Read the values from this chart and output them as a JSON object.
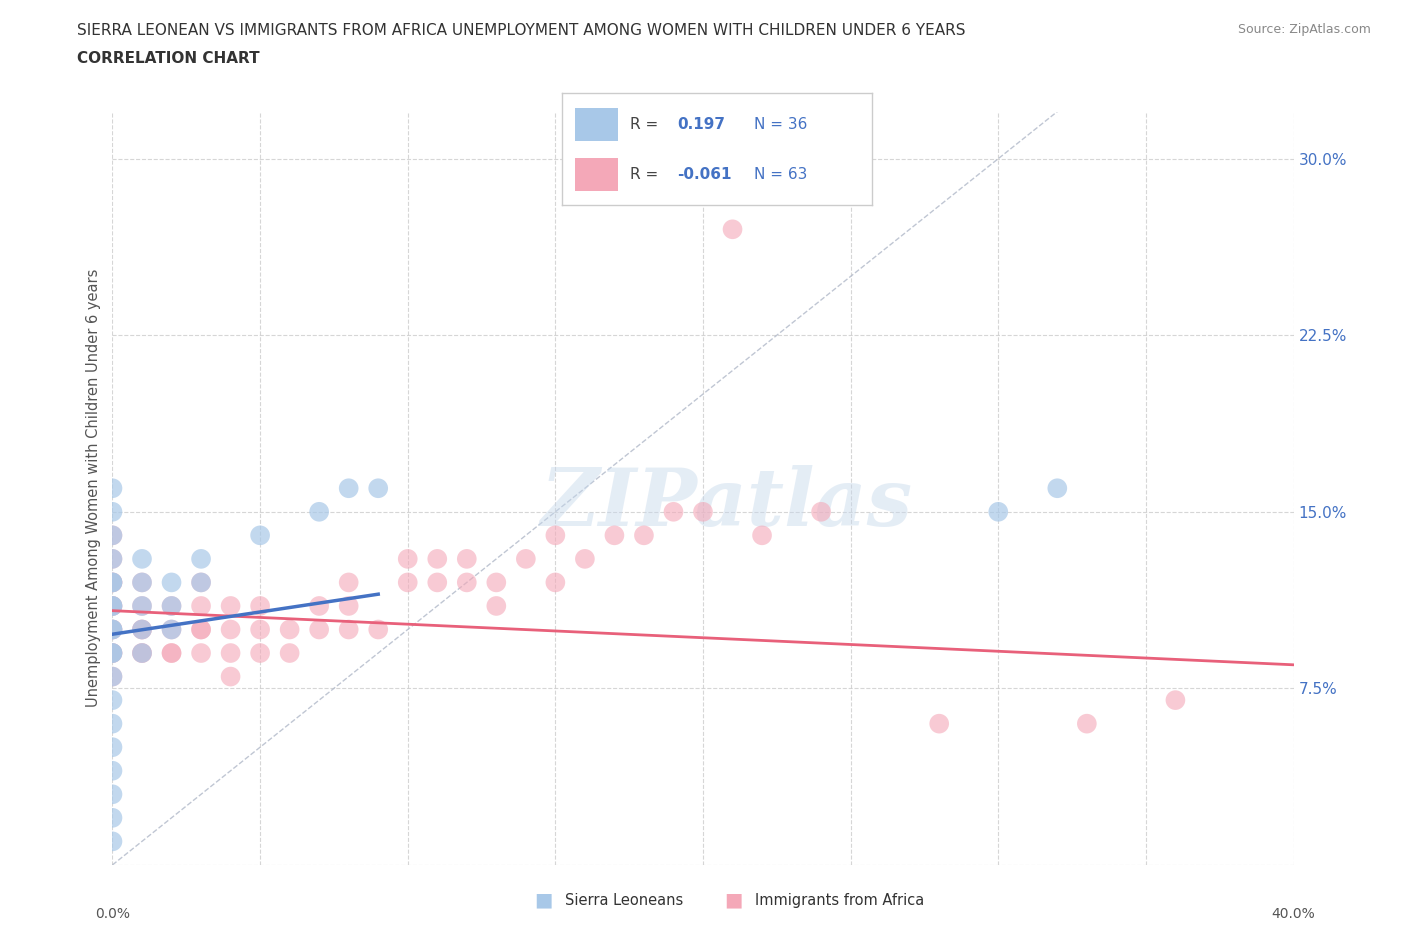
{
  "title_line1": "SIERRA LEONEAN VS IMMIGRANTS FROM AFRICA UNEMPLOYMENT AMONG WOMEN WITH CHILDREN UNDER 6 YEARS",
  "title_line2": "CORRELATION CHART",
  "source": "Source: ZipAtlas.com",
  "ylabel": "Unemployment Among Women with Children Under 6 years",
  "xlim": [
    0.0,
    0.4
  ],
  "ylim": [
    0.0,
    0.32
  ],
  "grid_color": "#cccccc",
  "background_color": "#ffffff",
  "sierra_color": "#a8c8e8",
  "africa_color": "#f4a8b8",
  "sierra_line_color": "#4472c4",
  "africa_line_color": "#e8607a",
  "diag_line_color": "#b0b8c8",
  "legend_text_color": "#4472c4",
  "sierra_data_x": [
    0.0,
    0.0,
    0.0,
    0.0,
    0.0,
    0.0,
    0.0,
    0.0,
    0.0,
    0.0,
    0.0,
    0.0,
    0.0,
    0.0,
    0.0,
    0.0,
    0.0,
    0.0,
    0.0,
    0.0,
    0.01,
    0.01,
    0.01,
    0.01,
    0.01,
    0.02,
    0.02,
    0.02,
    0.03,
    0.03,
    0.05,
    0.07,
    0.08,
    0.09,
    0.3,
    0.32
  ],
  "sierra_data_y": [
    0.04,
    0.05,
    0.06,
    0.07,
    0.08,
    0.09,
    0.09,
    0.1,
    0.1,
    0.11,
    0.11,
    0.12,
    0.12,
    0.13,
    0.14,
    0.15,
    0.16,
    0.02,
    0.03,
    0.01,
    0.09,
    0.1,
    0.11,
    0.12,
    0.13,
    0.1,
    0.11,
    0.12,
    0.12,
    0.13,
    0.14,
    0.15,
    0.16,
    0.16,
    0.15,
    0.16
  ],
  "africa_data_x": [
    0.0,
    0.0,
    0.0,
    0.0,
    0.0,
    0.0,
    0.0,
    0.0,
    0.0,
    0.0,
    0.0,
    0.01,
    0.01,
    0.01,
    0.01,
    0.01,
    0.01,
    0.02,
    0.02,
    0.02,
    0.02,
    0.03,
    0.03,
    0.03,
    0.03,
    0.03,
    0.04,
    0.04,
    0.04,
    0.04,
    0.05,
    0.05,
    0.05,
    0.06,
    0.06,
    0.07,
    0.07,
    0.08,
    0.08,
    0.08,
    0.09,
    0.1,
    0.1,
    0.11,
    0.11,
    0.12,
    0.12,
    0.13,
    0.13,
    0.14,
    0.15,
    0.15,
    0.16,
    0.17,
    0.18,
    0.19,
    0.2,
    0.21,
    0.22,
    0.24,
    0.28,
    0.33,
    0.36
  ],
  "africa_data_y": [
    0.08,
    0.09,
    0.09,
    0.1,
    0.1,
    0.11,
    0.11,
    0.12,
    0.12,
    0.13,
    0.14,
    0.09,
    0.09,
    0.1,
    0.1,
    0.11,
    0.12,
    0.09,
    0.09,
    0.1,
    0.11,
    0.09,
    0.1,
    0.1,
    0.11,
    0.12,
    0.08,
    0.09,
    0.1,
    0.11,
    0.09,
    0.1,
    0.11,
    0.09,
    0.1,
    0.1,
    0.11,
    0.1,
    0.11,
    0.12,
    0.1,
    0.12,
    0.13,
    0.12,
    0.13,
    0.12,
    0.13,
    0.11,
    0.12,
    0.13,
    0.12,
    0.14,
    0.13,
    0.14,
    0.14,
    0.15,
    0.15,
    0.27,
    0.14,
    0.15,
    0.06,
    0.06,
    0.07
  ],
  "sierra_line_x0": 0.0,
  "sierra_line_y0": 0.098,
  "sierra_line_x1": 0.09,
  "sierra_line_y1": 0.115,
  "africa_line_x0": 0.0,
  "africa_line_y0": 0.108,
  "africa_line_x1": 0.4,
  "africa_line_y1": 0.085
}
